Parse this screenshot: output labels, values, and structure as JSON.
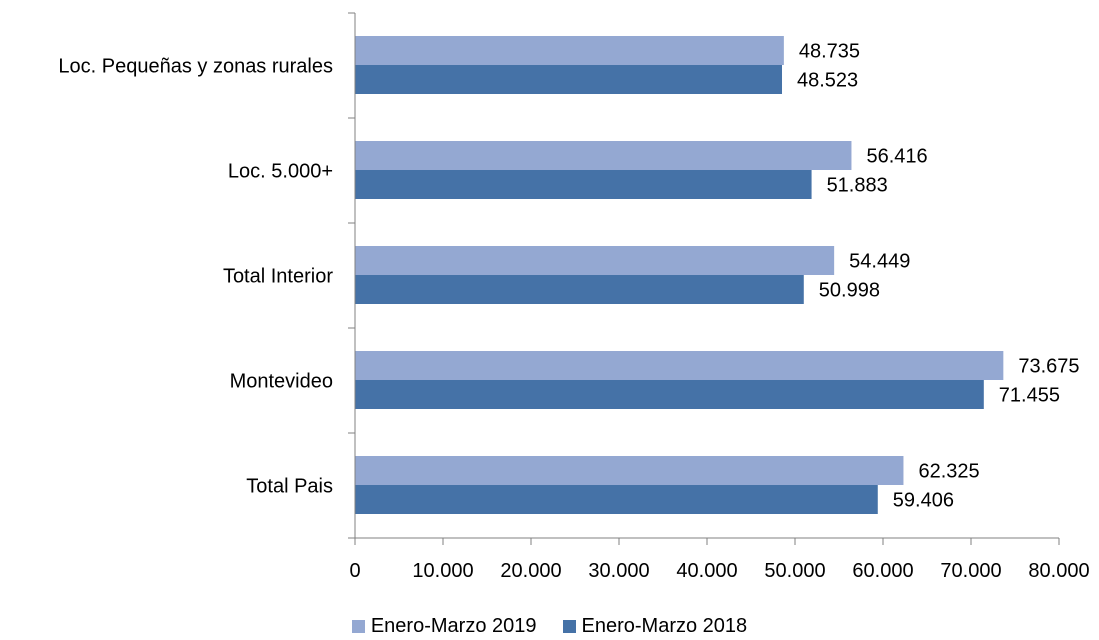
{
  "chart_data": {
    "type": "bar",
    "orientation": "horizontal",
    "categories": [
      "Loc. Pequeñas y zonas rurales",
      "Loc. 5.000+",
      "Total Interior",
      "Montevideo",
      "Total Pais"
    ],
    "series": [
      {
        "name": "Enero-Marzo 2019",
        "color": "#94a8d2",
        "values": [
          48735,
          56416,
          54449,
          73675,
          62325
        ],
        "labels": [
          "48.735",
          "56.416",
          "54.449",
          "73.675",
          "62.325"
        ]
      },
      {
        "name": "Enero-Marzo 2018",
        "color": "#4572a7",
        "values": [
          48523,
          51883,
          50998,
          71455,
          59406
        ],
        "labels": [
          "48.523",
          "51.883",
          "50.998",
          "71.455",
          "59.406"
        ]
      }
    ],
    "xlim": [
      0,
      80000
    ],
    "xticks": [
      0,
      10000,
      20000,
      30000,
      40000,
      50000,
      60000,
      70000,
      80000
    ],
    "xtick_labels": [
      "0",
      "10.000",
      "20.000",
      "30.000",
      "40.000",
      "50.000",
      "60.000",
      "70.000",
      "80.000"
    ],
    "legend_position": "bottom",
    "grid": false
  }
}
